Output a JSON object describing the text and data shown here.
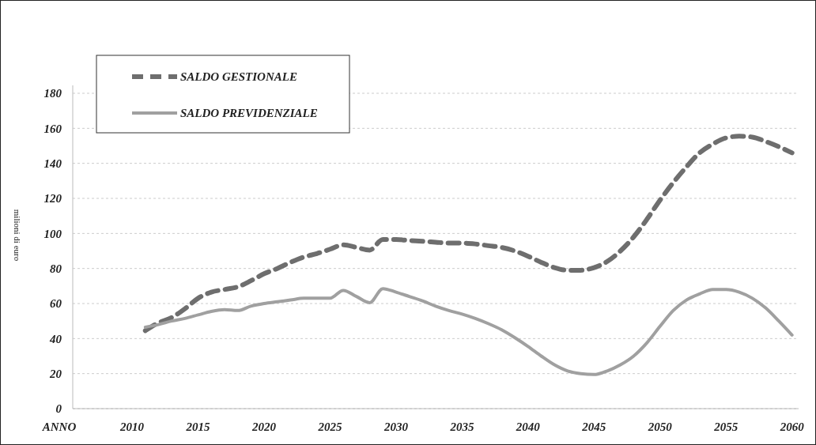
{
  "chart_data": {
    "type": "line",
    "xlabel": "ANNO",
    "ylabel": "milioni di euro",
    "xlim": [
      2005.5,
      2060.5
    ],
    "xticks": [
      2010,
      2015,
      2020,
      2025,
      2030,
      2035,
      2040,
      2045,
      2050,
      2055,
      2060
    ],
    "ylim": [
      0,
      180
    ],
    "yticks": [
      0,
      20,
      40,
      60,
      80,
      100,
      120,
      140,
      160,
      180
    ],
    "grid": "y",
    "legend": "top left",
    "marker": "none",
    "x": [
      2011,
      2012,
      2013,
      2014,
      2015,
      2016,
      2017,
      2018,
      2019,
      2020,
      2021,
      2022,
      2023,
      2024,
      2025,
      2026,
      2027,
      2028,
      2029,
      2030,
      2031,
      2032,
      2033,
      2034,
      2035,
      2036,
      2037,
      2038,
      2039,
      2040,
      2041,
      2042,
      2043,
      2044,
      2045,
      2046,
      2047,
      2048,
      2049,
      2050,
      2051,
      2052,
      2053,
      2054,
      2055,
      2056,
      2057,
      2058,
      2059,
      2060
    ],
    "series": [
      {
        "name": "SALDO GESTIONALE",
        "color": "#6e6e6e",
        "line_style": "dashed",
        "values": [
          44.5,
          49,
          52,
          57,
          63,
          66.5,
          68,
          69.5,
          73,
          77,
          80,
          83.5,
          86.5,
          88.5,
          91,
          93.5,
          92,
          90.5,
          96.5,
          96.5,
          96,
          95.5,
          95,
          94.5,
          94.5,
          94,
          93,
          92,
          90,
          87,
          83.5,
          80.5,
          79,
          79,
          80.5,
          84,
          90,
          98,
          108,
          119,
          129,
          138,
          146,
          151,
          154.5,
          155.5,
          155,
          152.5,
          149.5,
          146
        ]
      },
      {
        "name": "SALDO PREVIDENZIALE",
        "color": "#a0a0a0",
        "line_style": "solid",
        "values": [
          46.5,
          48,
          50,
          51.5,
          53.5,
          55.5,
          56.5,
          56,
          58.5,
          60,
          61,
          62,
          63,
          63,
          63,
          67.5,
          64,
          60.5,
          68.5,
          66.5,
          64,
          61.5,
          58.5,
          56,
          54,
          51.5,
          48.5,
          45,
          40.5,
          35.5,
          30,
          25,
          21.5,
          20,
          19.5,
          21.5,
          25,
          30,
          37.5,
          47,
          56,
          62,
          65.5,
          68,
          68,
          66.5,
          63,
          57.5,
          50,
          42
        ]
      }
    ]
  }
}
